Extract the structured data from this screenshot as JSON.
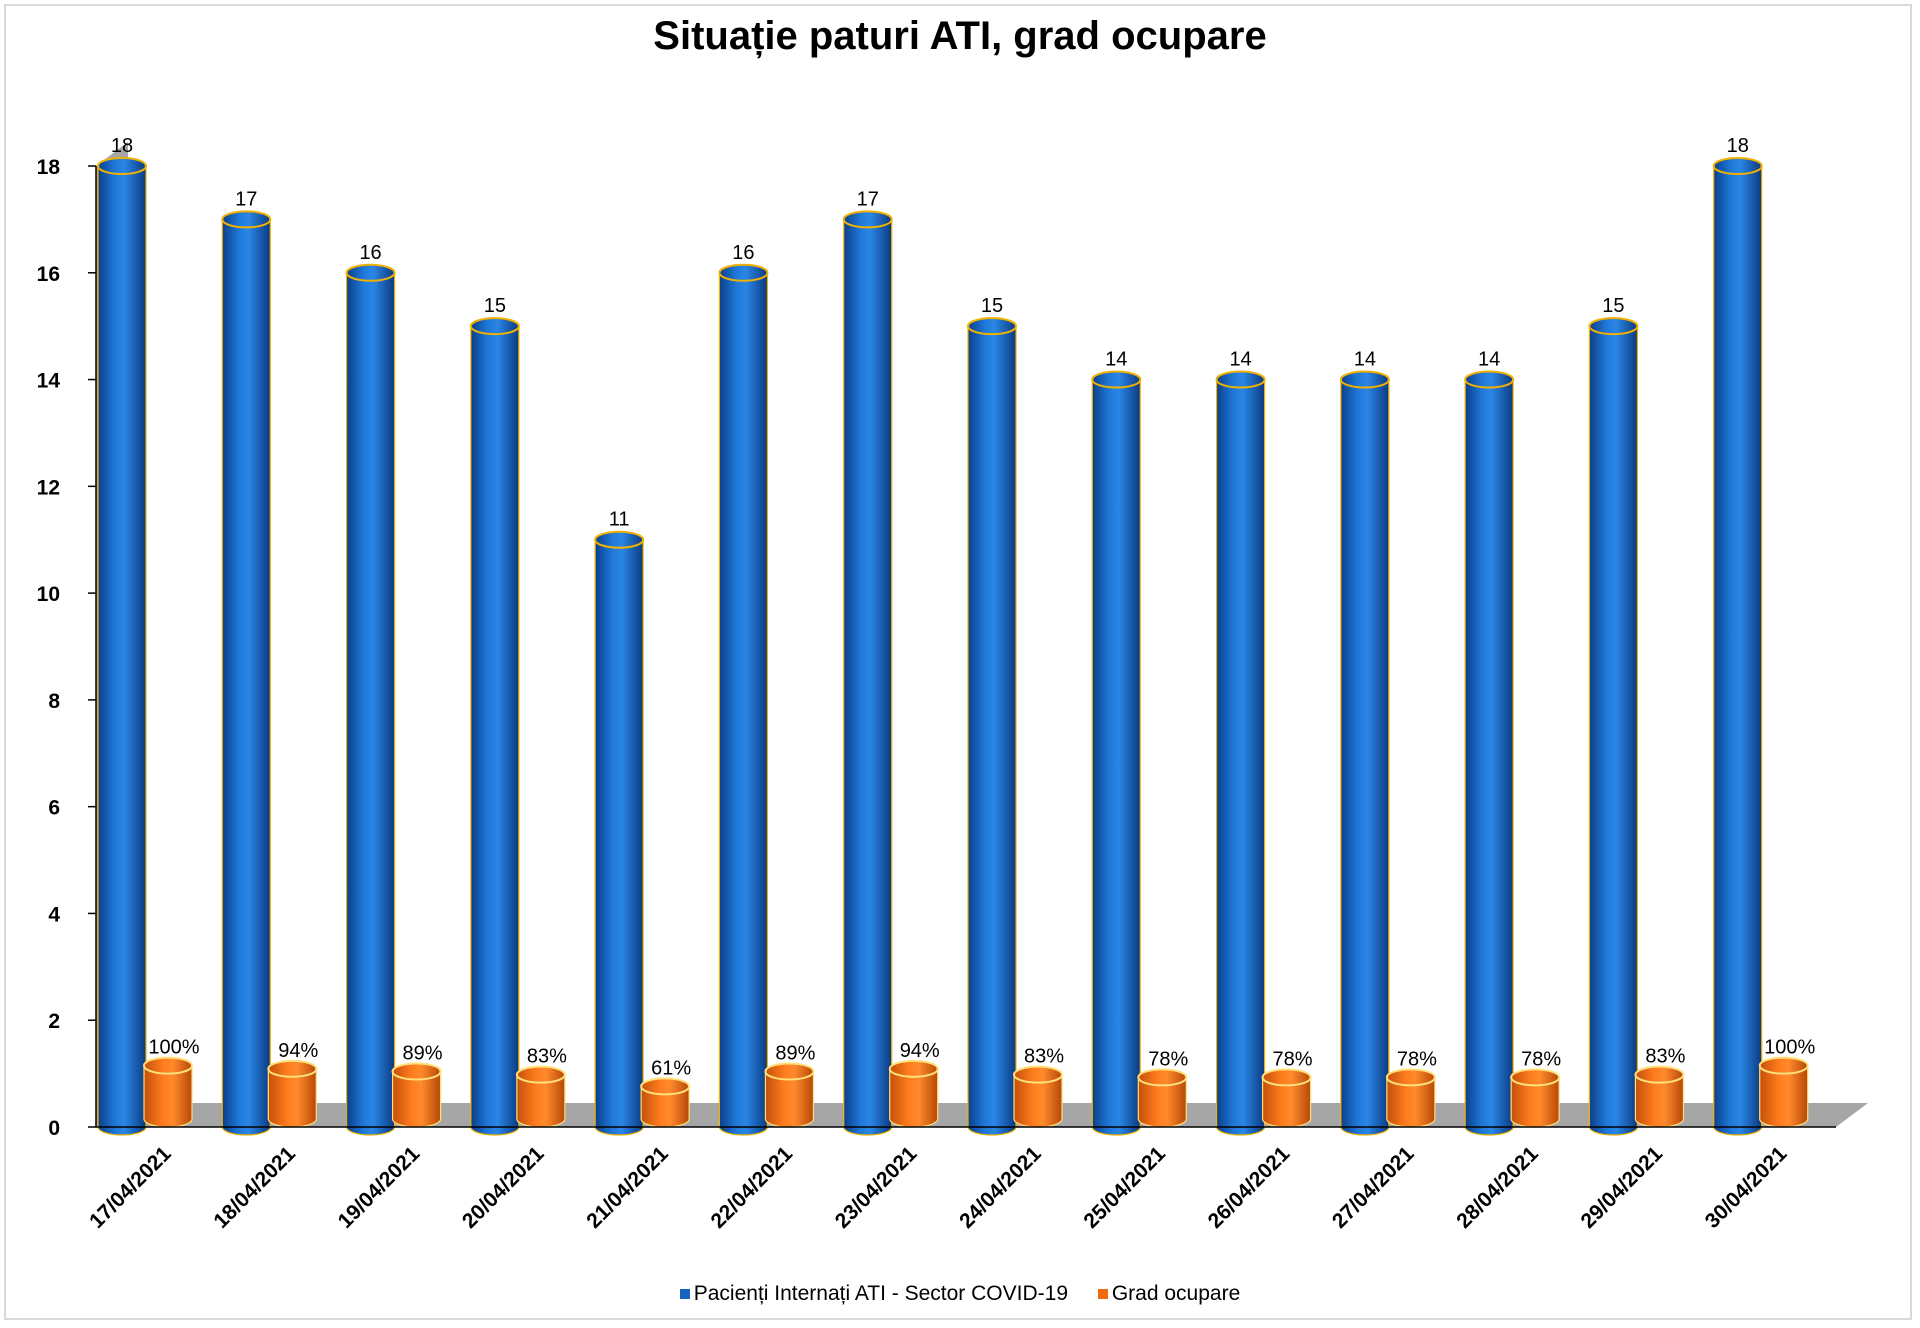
{
  "chart_data": {
    "type": "bar",
    "title": "Situație paturi ATI, grad ocupare",
    "categories": [
      "17/04/2021",
      "18/04/2021",
      "19/04/2021",
      "20/04/2021",
      "21/04/2021",
      "22/04/2021",
      "23/04/2021",
      "24/04/2021",
      "25/04/2021",
      "26/04/2021",
      "27/04/2021",
      "28/04/2021",
      "29/04/2021",
      "30/04/2021"
    ],
    "series": [
      {
        "name": "Pacienți Internați ATI - Sector COVID-19",
        "color": "#1565c0",
        "values": [
          18,
          17,
          16,
          15,
          11,
          16,
          17,
          15,
          14,
          14,
          14,
          14,
          15,
          18
        ],
        "labels": [
          "18",
          "17",
          "16",
          "15",
          "11",
          "16",
          "17",
          "15",
          "14",
          "14",
          "14",
          "14",
          "15",
          "18"
        ]
      },
      {
        "name": "Grad ocupare",
        "color": "#f26b0f",
        "values": [
          1.0,
          0.94,
          0.89,
          0.83,
          0.61,
          0.89,
          0.94,
          0.83,
          0.78,
          0.78,
          0.78,
          0.78,
          0.83,
          1.0
        ],
        "labels": [
          "100%",
          "94%",
          "89%",
          "83%",
          "61%",
          "89%",
          "94%",
          "83%",
          "78%",
          "78%",
          "78%",
          "78%",
          "83%",
          "100%"
        ]
      }
    ],
    "yticks": [
      "0",
      "2",
      "4",
      "6",
      "8",
      "10",
      "12",
      "14",
      "16",
      "18"
    ],
    "ylim": [
      0,
      18
    ],
    "grid": false,
    "legend_position": "bottom",
    "style": "3d-cylinder"
  }
}
